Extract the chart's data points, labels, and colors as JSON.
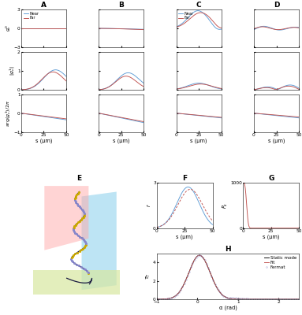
{
  "title_A": "A",
  "title_B": "B",
  "title_C": "C",
  "title_D": "D",
  "title_E": "E",
  "title_F": "F",
  "title_G": "G",
  "title_H": "H",
  "near_color": "#5b9bd5",
  "far_color": "#c0504d",
  "static_color": "#000000",
  "fit_color": "#c0504d",
  "fermat_color": "#9999cc",
  "s_label": "s (μm)",
  "alpha_label": "α (rad)",
  "near_label": "Near",
  "far_label": "Far",
  "static_label": "Static mode",
  "fit_label": "Fit",
  "fermat_label": "Fermat",
  "bg_color": "#ffffff"
}
